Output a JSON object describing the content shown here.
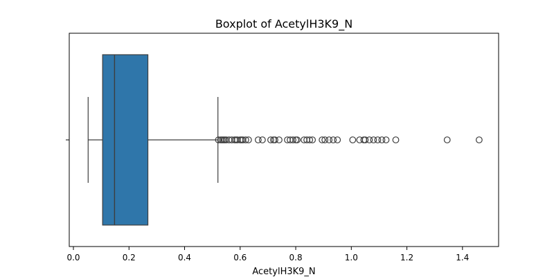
{
  "chart_data": {
    "type": "boxplot",
    "title": "Boxplot of AcetylH3K9_N",
    "xlabel": "AcetylH3K9_N",
    "ylabel": "",
    "xlim": [
      -0.015,
      1.53
    ],
    "x_ticks": [
      0.0,
      0.2,
      0.4,
      0.6,
      0.8,
      1.0,
      1.2,
      1.4
    ],
    "x_tick_labels": [
      "0.0",
      "0.2",
      "0.4",
      "0.6",
      "0.8",
      "1.0",
      "1.2",
      "1.4"
    ],
    "grid": false,
    "color": "#2f76aa",
    "box": {
      "whisker_low": 0.053,
      "q1": 0.105,
      "median": 0.148,
      "q3": 0.268,
      "whisker_high": 0.52
    },
    "outliers": [
      0.522,
      0.53,
      0.535,
      0.54,
      0.545,
      0.55,
      0.56,
      0.57,
      0.58,
      0.585,
      0.59,
      0.6,
      0.605,
      0.61,
      0.62,
      0.63,
      0.665,
      0.68,
      0.71,
      0.72,
      0.725,
      0.74,
      0.77,
      0.78,
      0.79,
      0.8,
      0.805,
      0.83,
      0.84,
      0.85,
      0.86,
      0.895,
      0.905,
      0.92,
      0.935,
      0.95,
      1.005,
      1.03,
      1.045,
      1.05,
      1.065,
      1.08,
      1.095,
      1.11,
      1.125,
      1.16,
      1.345,
      1.46
    ]
  }
}
